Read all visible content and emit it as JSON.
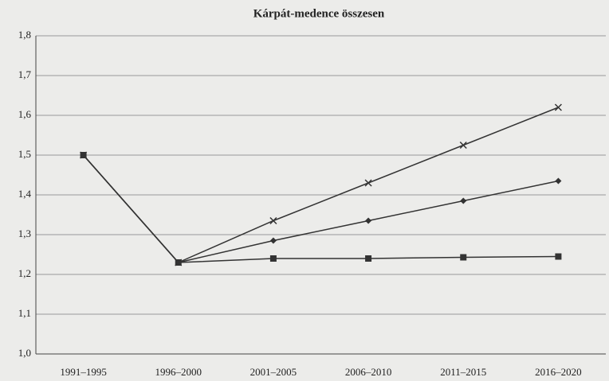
{
  "chart_data": {
    "type": "line",
    "title": "Kárpát-medence összesen",
    "categories": [
      "1991–1995",
      "1996–2000",
      "2001–2005",
      "2006–2010",
      "2011–2015",
      "2016–2020"
    ],
    "series": [
      {
        "color": "#333333",
        "marker": "x",
        "values": [
          1.5,
          1.23,
          1.335,
          1.43,
          1.525,
          1.62
        ]
      },
      {
        "color": "#333333",
        "marker": "diamond",
        "values": [
          1.5,
          1.23,
          1.285,
          1.335,
          1.385,
          1.435
        ]
      },
      {
        "color": "#333333",
        "marker": "square",
        "values": [
          1.5,
          1.23,
          1.24,
          1.24,
          1.243,
          1.245
        ]
      }
    ],
    "ylim": [
      1.0,
      1.8
    ],
    "yticks": [
      {
        "value": 1.0,
        "label": "1,0"
      },
      {
        "value": 1.1,
        "label": "1,1"
      },
      {
        "value": 1.2,
        "label": "1,2"
      },
      {
        "value": 1.3,
        "label": "1,3"
      },
      {
        "value": 1.4,
        "label": "1,4"
      },
      {
        "value": 1.5,
        "label": "1,5"
      },
      {
        "value": 1.6,
        "label": "1,6"
      },
      {
        "value": 1.7,
        "label": "1,7"
      },
      {
        "value": 1.8,
        "label": "1,8"
      }
    ],
    "grid": true
  }
}
